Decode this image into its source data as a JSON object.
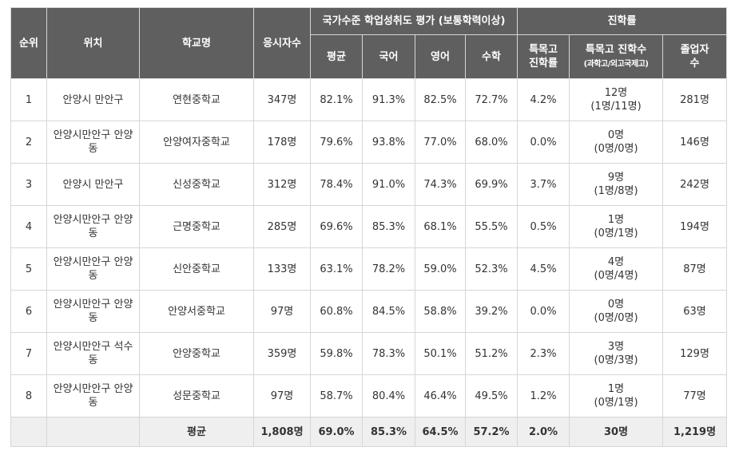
{
  "headers": {
    "rank": "순위",
    "location": "위치",
    "school": "학교명",
    "examinees": "응시자수",
    "achievement_group": "국가수준 학업성취도 평가 (보통학력이상)",
    "average": "평균",
    "korean": "국어",
    "english": "영어",
    "math": "수학",
    "advancement_group": "진학률",
    "special_rate_l1": "특목고",
    "special_rate_l2": "진학률",
    "special_count_l1": "특목고 진학수",
    "special_count_l2": "(과학고/외고국제고)",
    "graduates_l1": "졸업자",
    "graduates_l2": "수"
  },
  "rows": [
    {
      "rank": "1",
      "location": "안양시 만안구",
      "school": "연현중학교",
      "examinees": "347명",
      "average": "82.1%",
      "korean": "91.3%",
      "english": "82.5%",
      "math": "72.7%",
      "special_rate": "4.2%",
      "special_count": "12명",
      "special_breakdown": "(1명/11명)",
      "graduates": "281명"
    },
    {
      "rank": "2",
      "location": "안양시만안구 안양동",
      "school": "안양여자중학교",
      "examinees": "178명",
      "average": "79.6%",
      "korean": "93.8%",
      "english": "77.0%",
      "math": "68.0%",
      "special_rate": "0.0%",
      "special_count": "0명",
      "special_breakdown": "(0명/0명)",
      "graduates": "146명"
    },
    {
      "rank": "3",
      "location": "안양시 만안구",
      "school": "신성중학교",
      "examinees": "312명",
      "average": "78.4%",
      "korean": "91.0%",
      "english": "74.3%",
      "math": "69.9%",
      "special_rate": "3.7%",
      "special_count": "9명",
      "special_breakdown": "(1명/8명)",
      "graduates": "242명"
    },
    {
      "rank": "4",
      "location": "안양시만안구 안양동",
      "school": "근명중학교",
      "examinees": "285명",
      "average": "69.6%",
      "korean": "85.3%",
      "english": "68.1%",
      "math": "55.5%",
      "special_rate": "0.5%",
      "special_count": "1명",
      "special_breakdown": "(0명/1명)",
      "graduates": "194명"
    },
    {
      "rank": "5",
      "location": "안양시만안구 안양동",
      "school": "신안중학교",
      "examinees": "133명",
      "average": "63.1%",
      "korean": "78.2%",
      "english": "59.0%",
      "math": "52.3%",
      "special_rate": "4.5%",
      "special_count": "4명",
      "special_breakdown": "(0명/4명)",
      "graduates": "87명"
    },
    {
      "rank": "6",
      "location": "안양시만안구 안양동",
      "school": "안양서중학교",
      "examinees": "97명",
      "average": "60.8%",
      "korean": "84.5%",
      "english": "58.8%",
      "math": "39.2%",
      "special_rate": "0.0%",
      "special_count": "0명",
      "special_breakdown": "(0명/0명)",
      "graduates": "63명"
    },
    {
      "rank": "7",
      "location": "안양시만안구 석수동",
      "school": "안양중학교",
      "examinees": "359명",
      "average": "59.8%",
      "korean": "78.3%",
      "english": "50.1%",
      "math": "51.2%",
      "special_rate": "2.3%",
      "special_count": "3명",
      "special_breakdown": "(0명/3명)",
      "graduates": "129명"
    },
    {
      "rank": "8",
      "location": "안양시만안구 안양동",
      "school": "성문중학교",
      "examinees": "97명",
      "average": "58.7%",
      "korean": "80.4%",
      "english": "46.4%",
      "math": "49.5%",
      "special_rate": "1.2%",
      "special_count": "1명",
      "special_breakdown": "(0명/1명)",
      "graduates": "77명"
    }
  ],
  "average_row": {
    "label": "평균",
    "examinees": "1,808명",
    "average": "69.0%",
    "korean": "85.3%",
    "english": "64.5%",
    "math": "57.2%",
    "special_rate": "2.0%",
    "special_count": "30명",
    "graduates": "1,219명"
  },
  "colors": {
    "header_bg": "#5f5f5f",
    "border": "#d6d6d6",
    "average_row_bg": "#efefef"
  }
}
